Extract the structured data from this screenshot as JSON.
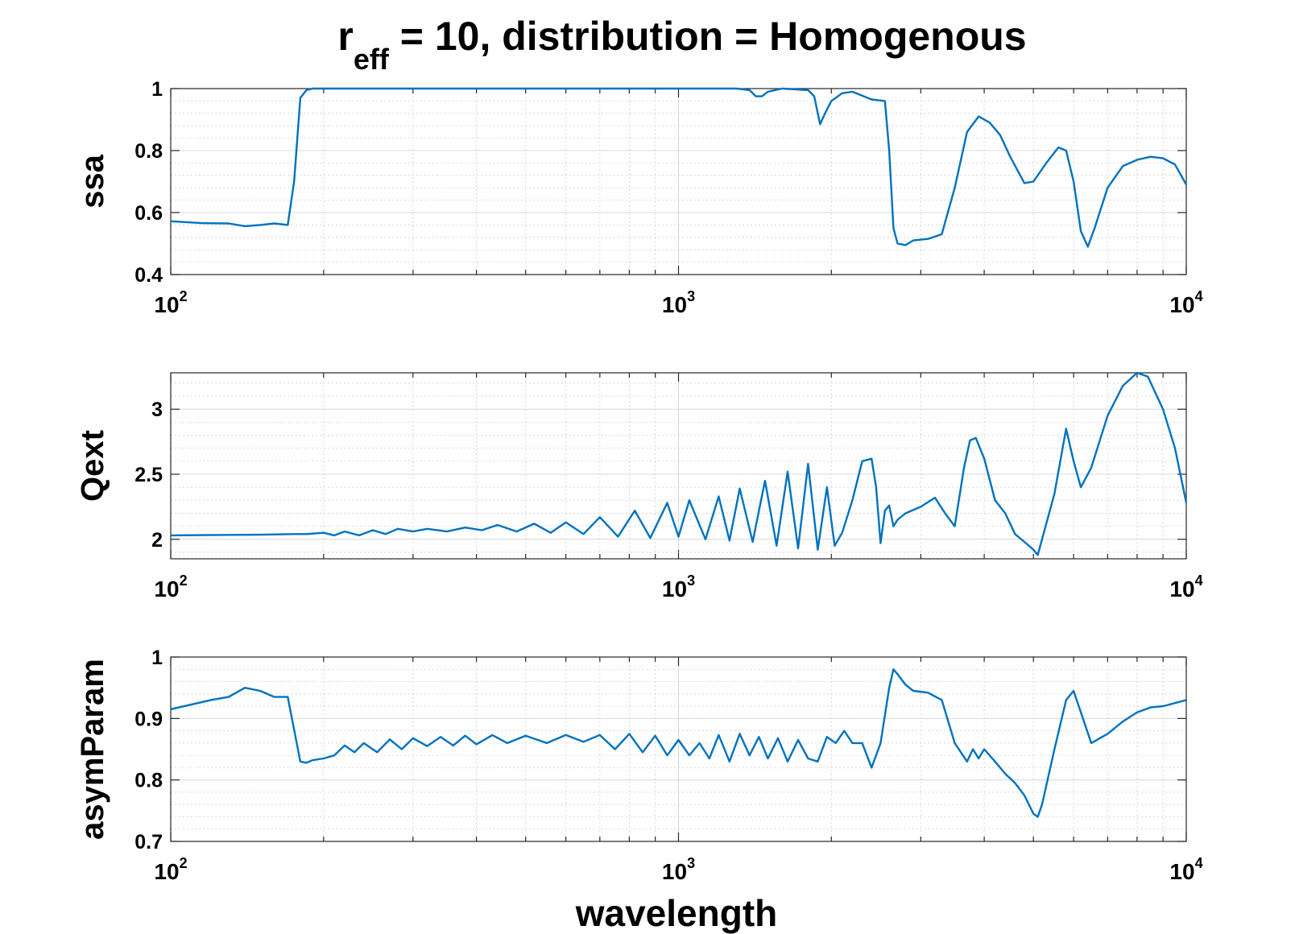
{
  "chart_data": [
    {
      "type": "line",
      "title": "r_eff = 10, distribution = Homogenous",
      "ylabel": "ssa",
      "xlabel": "",
      "xscale": "log",
      "xlim": [
        100,
        10000
      ],
      "ylim": [
        0.4,
        1.0
      ],
      "yticks": [
        0.4,
        0.6,
        0.8,
        1.0
      ],
      "ytick_labels": [
        "0.4",
        "0.6",
        "0.8",
        "1"
      ],
      "xtick_labels": [
        {
          "base": "10",
          "exp": "2"
        },
        {
          "base": "10",
          "exp": "3"
        },
        {
          "base": "10",
          "exp": "4"
        }
      ],
      "grid": true,
      "color": "#0072bd",
      "series": [
        {
          "x": [
            100,
            115,
            130,
            140,
            150,
            160,
            170,
            175,
            180,
            185,
            190,
            200,
            300,
            500,
            800,
            1000,
            1300,
            1380,
            1420,
            1460,
            1500,
            1600,
            1800,
            1850,
            1900,
            1950,
            2000,
            2100,
            2200,
            2400,
            2550,
            2600,
            2650,
            2700,
            2800,
            2900,
            3100,
            3300,
            3500,
            3700,
            3900,
            4100,
            4300,
            4500,
            4800,
            5000,
            5300,
            5600,
            5800,
            6000,
            6200,
            6400,
            6600,
            7000,
            7500,
            8000,
            8500,
            9000,
            9500,
            10000
          ],
          "y": [
            0.572,
            0.566,
            0.565,
            0.556,
            0.56,
            0.565,
            0.56,
            0.7,
            0.97,
            0.995,
            1.0,
            1.0,
            1.0,
            1.0,
            1.0,
            1.0,
            1.0,
            0.995,
            0.975,
            0.975,
            0.99,
            1.0,
            0.995,
            0.975,
            0.885,
            0.925,
            0.96,
            0.985,
            0.99,
            0.965,
            0.96,
            0.8,
            0.55,
            0.5,
            0.495,
            0.51,
            0.515,
            0.53,
            0.68,
            0.86,
            0.91,
            0.89,
            0.85,
            0.78,
            0.695,
            0.7,
            0.76,
            0.81,
            0.8,
            0.7,
            0.54,
            0.49,
            0.55,
            0.68,
            0.75,
            0.77,
            0.78,
            0.775,
            0.755,
            0.69
          ]
        }
      ]
    },
    {
      "type": "line",
      "title": "",
      "ylabel": "Qext",
      "xlabel": "",
      "xscale": "log",
      "xlim": [
        100,
        10000
      ],
      "ylim": [
        1.85,
        3.28
      ],
      "yticks": [
        2,
        2.5,
        3
      ],
      "ytick_labels": [
        "2",
        "2.5",
        "3"
      ],
      "xtick_labels": [
        {
          "base": "10",
          "exp": "2"
        },
        {
          "base": "10",
          "exp": "3"
        },
        {
          "base": "10",
          "exp": "4"
        }
      ],
      "grid": true,
      "color": "#0072bd",
      "series": [
        {
          "x": [
            100,
            150,
            175,
            185,
            200,
            210,
            220,
            235,
            250,
            265,
            280,
            300,
            320,
            350,
            380,
            410,
            440,
            480,
            520,
            560,
            600,
            650,
            700,
            760,
            820,
            880,
            950,
            1000,
            1050,
            1130,
            1200,
            1260,
            1320,
            1400,
            1480,
            1560,
            1640,
            1720,
            1800,
            1880,
            1960,
            2030,
            2100,
            2200,
            2300,
            2400,
            2450,
            2500,
            2550,
            2600,
            2650,
            2700,
            2800,
            3000,
            3200,
            3350,
            3500,
            3650,
            3750,
            3850,
            4000,
            4200,
            4400,
            4600,
            4800,
            5000,
            5100,
            5200,
            5500,
            5800,
            6000,
            6200,
            6500,
            7000,
            7500,
            8000,
            8400,
            9000,
            9500,
            10000
          ],
          "y": [
            2.03,
            2.035,
            2.04,
            2.04,
            2.05,
            2.03,
            2.06,
            2.03,
            2.07,
            2.04,
            2.08,
            2.06,
            2.08,
            2.06,
            2.09,
            2.07,
            2.11,
            2.06,
            2.12,
            2.05,
            2.13,
            2.04,
            2.17,
            2.02,
            2.22,
            2.01,
            2.28,
            2.02,
            2.3,
            2.0,
            2.33,
            1.99,
            2.39,
            1.98,
            2.45,
            1.95,
            2.52,
            1.93,
            2.58,
            1.92,
            2.4,
            1.95,
            2.05,
            2.3,
            2.6,
            2.62,
            2.4,
            1.97,
            2.22,
            2.26,
            2.1,
            2.15,
            2.2,
            2.25,
            2.32,
            2.2,
            2.1,
            2.55,
            2.76,
            2.78,
            2.62,
            2.3,
            2.2,
            2.04,
            1.98,
            1.92,
            1.88,
            2.0,
            2.35,
            2.85,
            2.6,
            2.4,
            2.55,
            2.95,
            3.18,
            3.28,
            3.25,
            3.0,
            2.7,
            2.28
          ]
        }
      ]
    },
    {
      "type": "line",
      "title": "",
      "ylabel": "asymParam",
      "xlabel": "wavelength",
      "xscale": "log",
      "xlim": [
        100,
        10000
      ],
      "ylim": [
        0.7,
        1.0
      ],
      "yticks": [
        0.7,
        0.8,
        0.9,
        1.0
      ],
      "ytick_labels": [
        "0.7",
        "0.8",
        "0.9",
        "1"
      ],
      "xtick_labels": [
        {
          "base": "10",
          "exp": "2"
        },
        {
          "base": "10",
          "exp": "3"
        },
        {
          "base": "10",
          "exp": "4"
        }
      ],
      "grid": true,
      "color": "#0072bd",
      "series": [
        {
          "x": [
            100,
            120,
            130,
            140,
            150,
            160,
            170,
            180,
            185,
            190,
            200,
            210,
            220,
            230,
            240,
            255,
            270,
            285,
            300,
            320,
            340,
            360,
            380,
            400,
            430,
            460,
            500,
            550,
            600,
            650,
            700,
            750,
            800,
            850,
            900,
            950,
            1000,
            1050,
            1100,
            1150,
            1200,
            1260,
            1320,
            1380,
            1440,
            1500,
            1570,
            1640,
            1720,
            1800,
            1880,
            1960,
            2040,
            2120,
            2200,
            2300,
            2400,
            2500,
            2600,
            2650,
            2700,
            2800,
            2900,
            3100,
            3300,
            3500,
            3700,
            3800,
            3900,
            4000,
            4200,
            4400,
            4600,
            4800,
            5000,
            5100,
            5200,
            5500,
            5800,
            6000,
            6200,
            6500,
            7000,
            7500,
            8000,
            8500,
            9000,
            10000
          ],
          "y": [
            0.915,
            0.93,
            0.935,
            0.95,
            0.945,
            0.935,
            0.935,
            0.83,
            0.828,
            0.832,
            0.835,
            0.84,
            0.856,
            0.845,
            0.86,
            0.845,
            0.866,
            0.85,
            0.868,
            0.855,
            0.87,
            0.856,
            0.872,
            0.858,
            0.873,
            0.86,
            0.872,
            0.86,
            0.873,
            0.862,
            0.873,
            0.85,
            0.875,
            0.845,
            0.872,
            0.84,
            0.865,
            0.84,
            0.86,
            0.835,
            0.873,
            0.83,
            0.875,
            0.84,
            0.87,
            0.835,
            0.868,
            0.83,
            0.865,
            0.835,
            0.83,
            0.87,
            0.86,
            0.88,
            0.86,
            0.86,
            0.82,
            0.86,
            0.95,
            0.98,
            0.972,
            0.955,
            0.945,
            0.942,
            0.93,
            0.86,
            0.83,
            0.85,
            0.835,
            0.85,
            0.83,
            0.81,
            0.795,
            0.775,
            0.745,
            0.74,
            0.76,
            0.85,
            0.93,
            0.945,
            0.91,
            0.86,
            0.875,
            0.895,
            0.91,
            0.918,
            0.92,
            0.93
          ]
        }
      ]
    }
  ]
}
